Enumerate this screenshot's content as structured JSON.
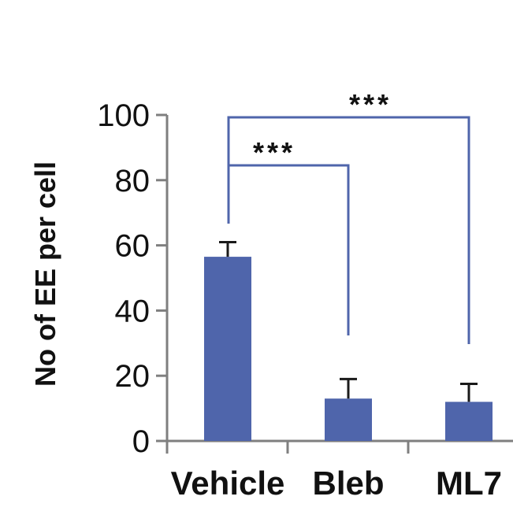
{
  "chart_data": {
    "type": "bar",
    "title": "",
    "xlabel": "",
    "ylabel": "No of EE per cell",
    "ylim": [
      0,
      100
    ],
    "yticks": [
      0,
      20,
      40,
      60,
      80,
      100
    ],
    "ytick_labels": [
      "0",
      "20",
      "40",
      "60",
      "80",
      "100"
    ],
    "categories": [
      "Vehicle",
      "Bleb",
      "ML7"
    ],
    "values": [
      56.5,
      13,
      12
    ],
    "error_upper": [
      4.5,
      6,
      5.5
    ],
    "grid": false,
    "legend": "none",
    "colors": {
      "bar": "#4f65ab",
      "bracket": "#4f65ab",
      "axis": "#7f7f7f",
      "text": "#111111"
    },
    "significance": [
      {
        "from": "Vehicle",
        "to": "Bleb",
        "label": "***"
      },
      {
        "from": "Vehicle",
        "to": "ML7",
        "label": "***"
      }
    ]
  }
}
